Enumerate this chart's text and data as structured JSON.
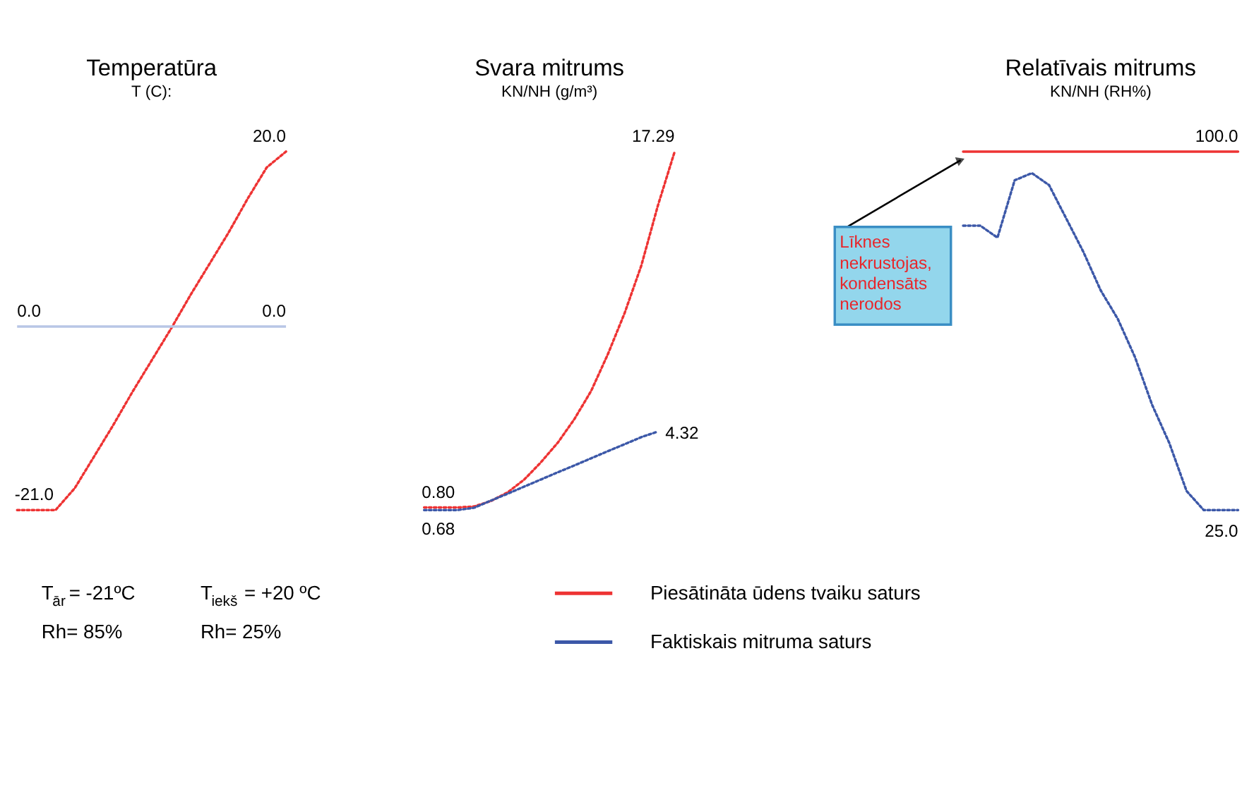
{
  "chart_data": [
    {
      "type": "line",
      "title": "Temperatūra",
      "subtitle": "T (C):",
      "line_style": "dotted",
      "categories": [
        null,
        null,
        null,
        null,
        null,
        null,
        null,
        null,
        null,
        null,
        null,
        null,
        null,
        null,
        null
      ],
      "series": [
        {
          "color": "#ee3333",
          "values": [
            -21,
            -21,
            -21,
            -18.5,
            -14.9,
            -11.3,
            -7.5,
            -3.9,
            -0.3,
            3.5,
            7.1,
            10.7,
            14.6,
            18.2,
            20
          ],
          "value_labels": [
            "-21.0",
            null,
            null,
            null,
            null,
            null,
            null,
            null,
            null,
            null,
            null,
            null,
            null,
            null,
            "20.0"
          ]
        }
      ],
      "ref_lines": [
        {
          "axis": "y",
          "value": 0,
          "label": "0.0",
          "color": "#b8c6e6"
        }
      ],
      "annotations": [
        "T$_{ār}$= -21ºC",
        "T$_{iekš}$= +20 ºC",
        "Rh= 85%",
        "Rh= 25%"
      ]
    },
    {
      "type": "line",
      "title": "Svara mitrums",
      "subtitle": "KN/NH (g/m³)",
      "line_style": "dotted",
      "legend": "bottom",
      "categories": [
        null,
        null,
        null,
        null,
        null,
        null,
        null,
        null,
        null,
        null,
        null,
        null,
        null,
        null,
        null,
        null
      ],
      "series": [
        {
          "name": "Piesātināta ūdens tvaiku saturs",
          "color": "#ee3333",
          "values": [
            0.8,
            0.8,
            0.8,
            0.85,
            1.1,
            1.5,
            2.1,
            2.9,
            3.8,
            4.9,
            6.2,
            7.9,
            9.8,
            12.0,
            14.8,
            17.29
          ],
          "value_labels": [
            "0.80",
            null,
            null,
            null,
            null,
            null,
            null,
            null,
            null,
            null,
            null,
            null,
            null,
            null,
            null,
            "17.29"
          ]
        },
        {
          "name": "Faktiskais mitruma saturs",
          "color": "#3c58a8",
          "values": [
            0.68,
            0.68,
            0.68,
            0.79,
            1.12,
            1.44,
            1.77,
            2.1,
            2.43,
            2.75,
            3.08,
            3.41,
            3.73,
            4.06,
            4.32,
            null
          ],
          "value_labels": [
            "0.68",
            null,
            null,
            null,
            null,
            null,
            null,
            null,
            null,
            null,
            null,
            null,
            null,
            null,
            "4.32",
            null
          ]
        }
      ]
    },
    {
      "type": "line",
      "title": "Relatīvais mitrums",
      "subtitle": "KN/NH (RH%)",
      "line_style": "dotted",
      "legend": "bottom",
      "categories": [
        null,
        null,
        null,
        null,
        null,
        null,
        null,
        null,
        null,
        null,
        null,
        null,
        null,
        null,
        null,
        null,
        null
      ],
      "series": [
        {
          "name": "Piesātināta ūdens tvaiku saturs",
          "color": "#ee3333",
          "line_style": "solid",
          "values": [
            100,
            100,
            100,
            100,
            100,
            100,
            100,
            100,
            100,
            100,
            100,
            100,
            100,
            100,
            100,
            100,
            100
          ],
          "value_labels": [
            null,
            null,
            null,
            null,
            null,
            null,
            null,
            null,
            null,
            null,
            null,
            null,
            null,
            null,
            null,
            null,
            "100.0"
          ]
        },
        {
          "name": "Faktiskais mitruma saturs",
          "color": "#3c58a8",
          "values": [
            84.5,
            84.5,
            82,
            94,
            95.5,
            93,
            86,
            79,
            71,
            65,
            57,
            47,
            39,
            29,
            25,
            25,
            25
          ],
          "value_labels": [
            null,
            null,
            null,
            null,
            null,
            null,
            null,
            null,
            null,
            null,
            null,
            null,
            null,
            null,
            null,
            null,
            "25.0"
          ]
        }
      ],
      "annotations": [
        "Līknes\nnekrustojas,\nkondensāts\nnerodos"
      ]
    }
  ]
}
